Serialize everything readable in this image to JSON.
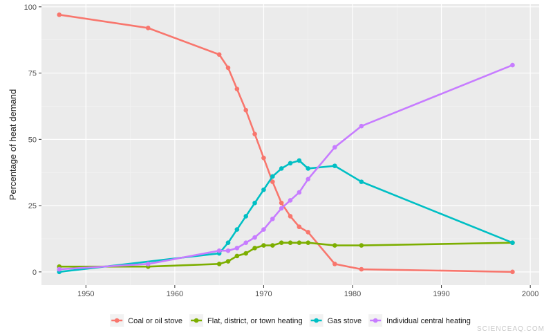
{
  "chart_data": {
    "type": "line",
    "title": "",
    "xlabel": "",
    "ylabel": "Percentage of heat demand",
    "xlim": [
      1945,
      2001
    ],
    "ylim": [
      -5,
      101
    ],
    "xticks": [
      1950,
      1960,
      1970,
      1980,
      1990,
      2000
    ],
    "yticks": [
      0,
      25,
      50,
      75,
      100
    ],
    "grid": true,
    "legend_position": "bottom",
    "series": [
      {
        "name": "Coal or oil stove",
        "color": "#F8766D",
        "x": [
          1947,
          1957,
          1965,
          1966,
          1967,
          1968,
          1969,
          1970,
          1971,
          1972,
          1973,
          1974,
          1975,
          1978,
          1981,
          1998
        ],
        "y": [
          97,
          92,
          82,
          77,
          69,
          61,
          52,
          43,
          34,
          26,
          21,
          17,
          15,
          3,
          1,
          0
        ]
      },
      {
        "name": "Flat, district, or town heating",
        "color": "#7CAE00",
        "x": [
          1947,
          1957,
          1965,
          1966,
          1967,
          1968,
          1969,
          1970,
          1971,
          1972,
          1973,
          1974,
          1975,
          1978,
          1981,
          1998
        ],
        "y": [
          2,
          2,
          3,
          4,
          6,
          7,
          9,
          10,
          10,
          11,
          11,
          11,
          11,
          10,
          10,
          11
        ]
      },
      {
        "name": "Gas stove",
        "color": "#00BFC4",
        "x": [
          1947,
          1965,
          1966,
          1967,
          1968,
          1969,
          1970,
          1971,
          1972,
          1973,
          1974,
          1975,
          1978,
          1981,
          1998
        ],
        "y": [
          0,
          7,
          11,
          16,
          21,
          26,
          31,
          36,
          39,
          41,
          42,
          39,
          40,
          34,
          11
        ]
      },
      {
        "name": "Individual central heating",
        "color": "#C77CFF",
        "x": [
          1947,
          1957,
          1965,
          1966,
          1967,
          1968,
          1969,
          1970,
          1971,
          1972,
          1973,
          1974,
          1975,
          1978,
          1981,
          1998
        ],
        "y": [
          1,
          3,
          8,
          8,
          9,
          11,
          13,
          16,
          20,
          24,
          27,
          30,
          35,
          47,
          55,
          78
        ]
      }
    ]
  },
  "watermark": "SCIENCEAQ.COM"
}
